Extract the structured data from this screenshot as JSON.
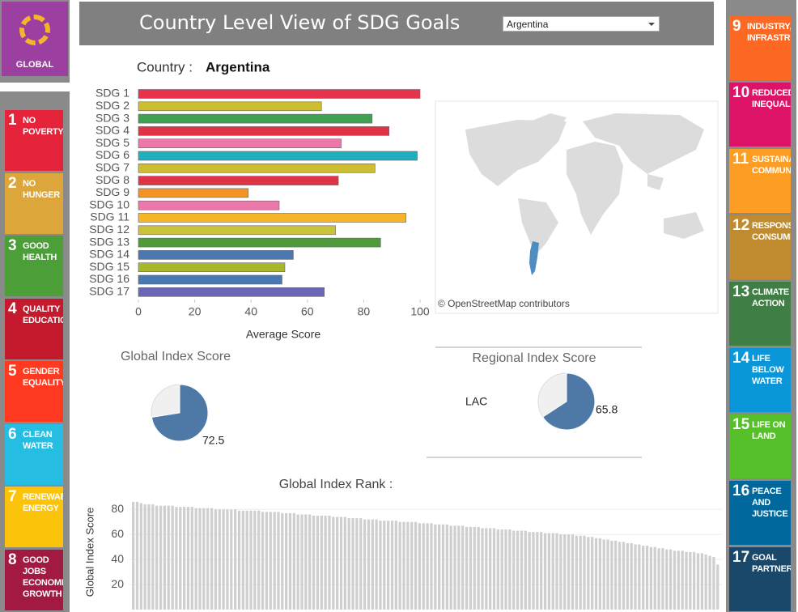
{
  "header": {
    "title": "Country Level View of SDG Goals",
    "dropdown": "Argentina"
  },
  "global_button": {
    "label": "GLOBAL"
  },
  "sidebar_left": [
    {
      "number": "1",
      "label": "NO POVERTY",
      "color": "#e5243b"
    },
    {
      "number": "2",
      "label": "NO HUNGER",
      "color": "#dda63a"
    },
    {
      "number": "3",
      "label": "GOOD HEALTH",
      "color": "#4c9f38"
    },
    {
      "number": "4",
      "label": "QUALITY EDUCATION",
      "color": "#c5192d"
    },
    {
      "number": "5",
      "label": "GENDER EQUALITY",
      "color": "#ff3a21"
    },
    {
      "number": "6",
      "label": "CLEAN WATER",
      "color": "#26bde2"
    },
    {
      "number": "7",
      "label": "RENEWABLE ENERGY",
      "color": "#fcc30b"
    },
    {
      "number": "8",
      "label": "GOOD JOBS ECONOMIC GROWTH",
      "color": "#a21942"
    }
  ],
  "sidebar_right": [
    {
      "number": "9",
      "label": "INDUSTRY, INFRASTRUCTURE",
      "color": "#fd6925"
    },
    {
      "number": "10",
      "label": "REDUCED INEQUALITIES",
      "color": "#dd1367"
    },
    {
      "number": "11",
      "label": "SUSTAINABLE COMMUNITIES",
      "color": "#fd9d24"
    },
    {
      "number": "12",
      "label": "RESPONSIBLE CONSUMPTION",
      "color": "#bf8b2e"
    },
    {
      "number": "13",
      "label": "CLIMATE ACTION",
      "color": "#3f7e44"
    },
    {
      "number": "14",
      "label": "LIFE BELOW WATER",
      "color": "#0a97d9"
    },
    {
      "number": "15",
      "label": "LIFE ON LAND",
      "color": "#56c02b"
    },
    {
      "number": "16",
      "label": "PEACE AND JUSTICE",
      "color": "#00689d"
    },
    {
      "number": "17",
      "label": "GOAL PARTNERS",
      "color": "#19486a"
    }
  ],
  "map": {
    "attribution": "© OpenStreetMap contributors"
  },
  "chart_data": [
    {
      "type": "bar",
      "orientation": "horizontal",
      "title": "Country :",
      "country": "Argentina",
      "categories": [
        "SDG 1",
        "SDG 2",
        "SDG 3",
        "SDG 4",
        "SDG 5",
        "SDG 6",
        "SDG 7",
        "SDG 8",
        "SDG 9",
        "SDG 10",
        "SDG 11",
        "SDG 12",
        "SDG 13",
        "SDG 14",
        "SDG 15",
        "SDG 16",
        "SDG 17"
      ],
      "values": [
        100,
        65,
        83,
        89,
        72,
        99,
        84,
        71,
        39,
        50,
        95,
        70,
        86,
        55,
        52,
        51,
        66
      ],
      "colors": [
        "#e8334f",
        "#cdbd31",
        "#3fa151",
        "#e03346",
        "#ec78aa",
        "#21aebe",
        "#cdbd31",
        "#e03346",
        "#f39325",
        "#ec78aa",
        "#f7b52a",
        "#c9c23a",
        "#4f9a3a",
        "#4a78b0",
        "#a8b72e",
        "#4a78b0",
        "#6a67b8"
      ],
      "xlim": [
        0,
        100
      ],
      "xticks": [
        0,
        20,
        40,
        60,
        80,
        100
      ],
      "xlabel": "Average Score"
    },
    {
      "type": "pie",
      "title": "Global Index Score",
      "values": [
        72.5
      ],
      "range": [
        0,
        100
      ],
      "color": "#4e79a7"
    },
    {
      "type": "pie",
      "title": "Regional Index Score",
      "region": "LAC",
      "values": [
        65.8
      ],
      "range": [
        0,
        100
      ],
      "color": "#4e79a7"
    },
    {
      "type": "bar",
      "orientation": "vertical",
      "title": "Global Index Rank :",
      "ylabel": "Global Index Score",
      "ylim": [
        0,
        86
      ],
      "yticks": [
        20,
        40,
        60,
        80
      ],
      "grid": true,
      "color": "#cfcfcf",
      "values": [
        86,
        86,
        85,
        84,
        84,
        84,
        83,
        83,
        83,
        83,
        83,
        82,
        82,
        82,
        82,
        82,
        81,
        81,
        81,
        81,
        81,
        80,
        80,
        80,
        80,
        80,
        80,
        79,
        79,
        79,
        79,
        79,
        79,
        78,
        78,
        78,
        78,
        78,
        77,
        77,
        77,
        77,
        76,
        76,
        76,
        76,
        75,
        75,
        75,
        75,
        75,
        74,
        74,
        74,
        74,
        73,
        73,
        73,
        73,
        72,
        72,
        72,
        72,
        71,
        71,
        71,
        71,
        71,
        70,
        70,
        70,
        70,
        70,
        69,
        69,
        69,
        69,
        68,
        68,
        68,
        68,
        67,
        67,
        67,
        67,
        66,
        66,
        66,
        66,
        65,
        65,
        65,
        65,
        64,
        64,
        64,
        64,
        63,
        63,
        63,
        63,
        62,
        62,
        62,
        62,
        61,
        61,
        61,
        61,
        60,
        60,
        60,
        60,
        59,
        59,
        59,
        58,
        58,
        57,
        57,
        56,
        56,
        55,
        55,
        54,
        54,
        53,
        53,
        52,
        52,
        51,
        51,
        50,
        50,
        49,
        49,
        48,
        48,
        47,
        47,
        47,
        46,
        46,
        46,
        45,
        45,
        44,
        43,
        42,
        36
      ]
    }
  ]
}
